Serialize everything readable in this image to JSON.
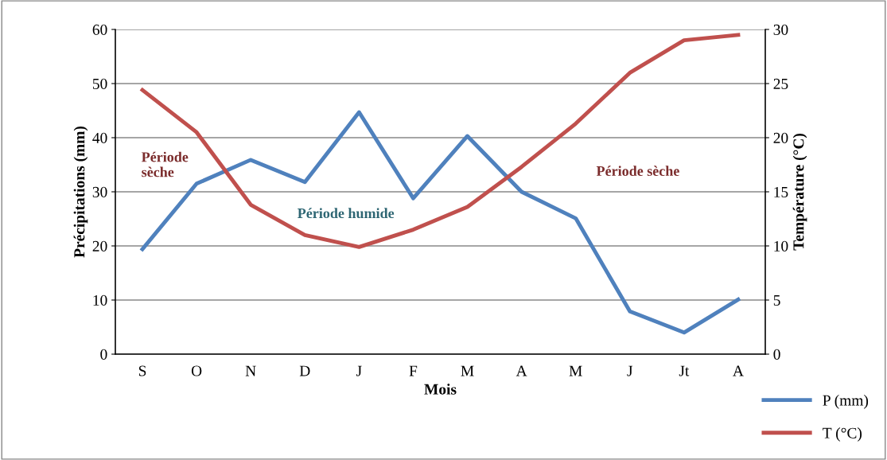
{
  "chart_data": {
    "type": "line",
    "xlabel": "Mois",
    "ylabel": "Précipitations (mm)",
    "y2label": "Température (°C)",
    "categories": [
      "S",
      "O",
      "N",
      "D",
      "J",
      "F",
      "M",
      "A",
      "M",
      "J",
      "Jt",
      "A"
    ],
    "series": [
      {
        "name": "P (mm)",
        "color": "#4f81bd",
        "values": [
          19.4,
          31.5,
          35.9,
          31.8,
          44.7,
          28.8,
          40.3,
          30.0,
          25.1,
          7.9,
          4.0,
          10.1
        ]
      },
      {
        "name": "T (°C)",
        "color": "#c0504d",
        "axis": "y2",
        "values": [
          24.4,
          20.5,
          13.8,
          11.0,
          9.9,
          11.5,
          13.6,
          17.3,
          21.3,
          26.0,
          29.0,
          29.5
        ]
      }
    ],
    "ylim": [
      0,
      60
    ],
    "yticks": [
      0,
      10,
      20,
      30,
      40,
      50,
      60
    ],
    "y2lim": [
      0,
      30
    ],
    "y2ticks": [
      0,
      5,
      10,
      15,
      20,
      25,
      30
    ],
    "grid": "y",
    "legend": "bottom right",
    "marker": "none",
    "line_style": "solid",
    "annotations": [
      "Période\nsèche",
      "Période humide",
      "Période sèche"
    ]
  }
}
